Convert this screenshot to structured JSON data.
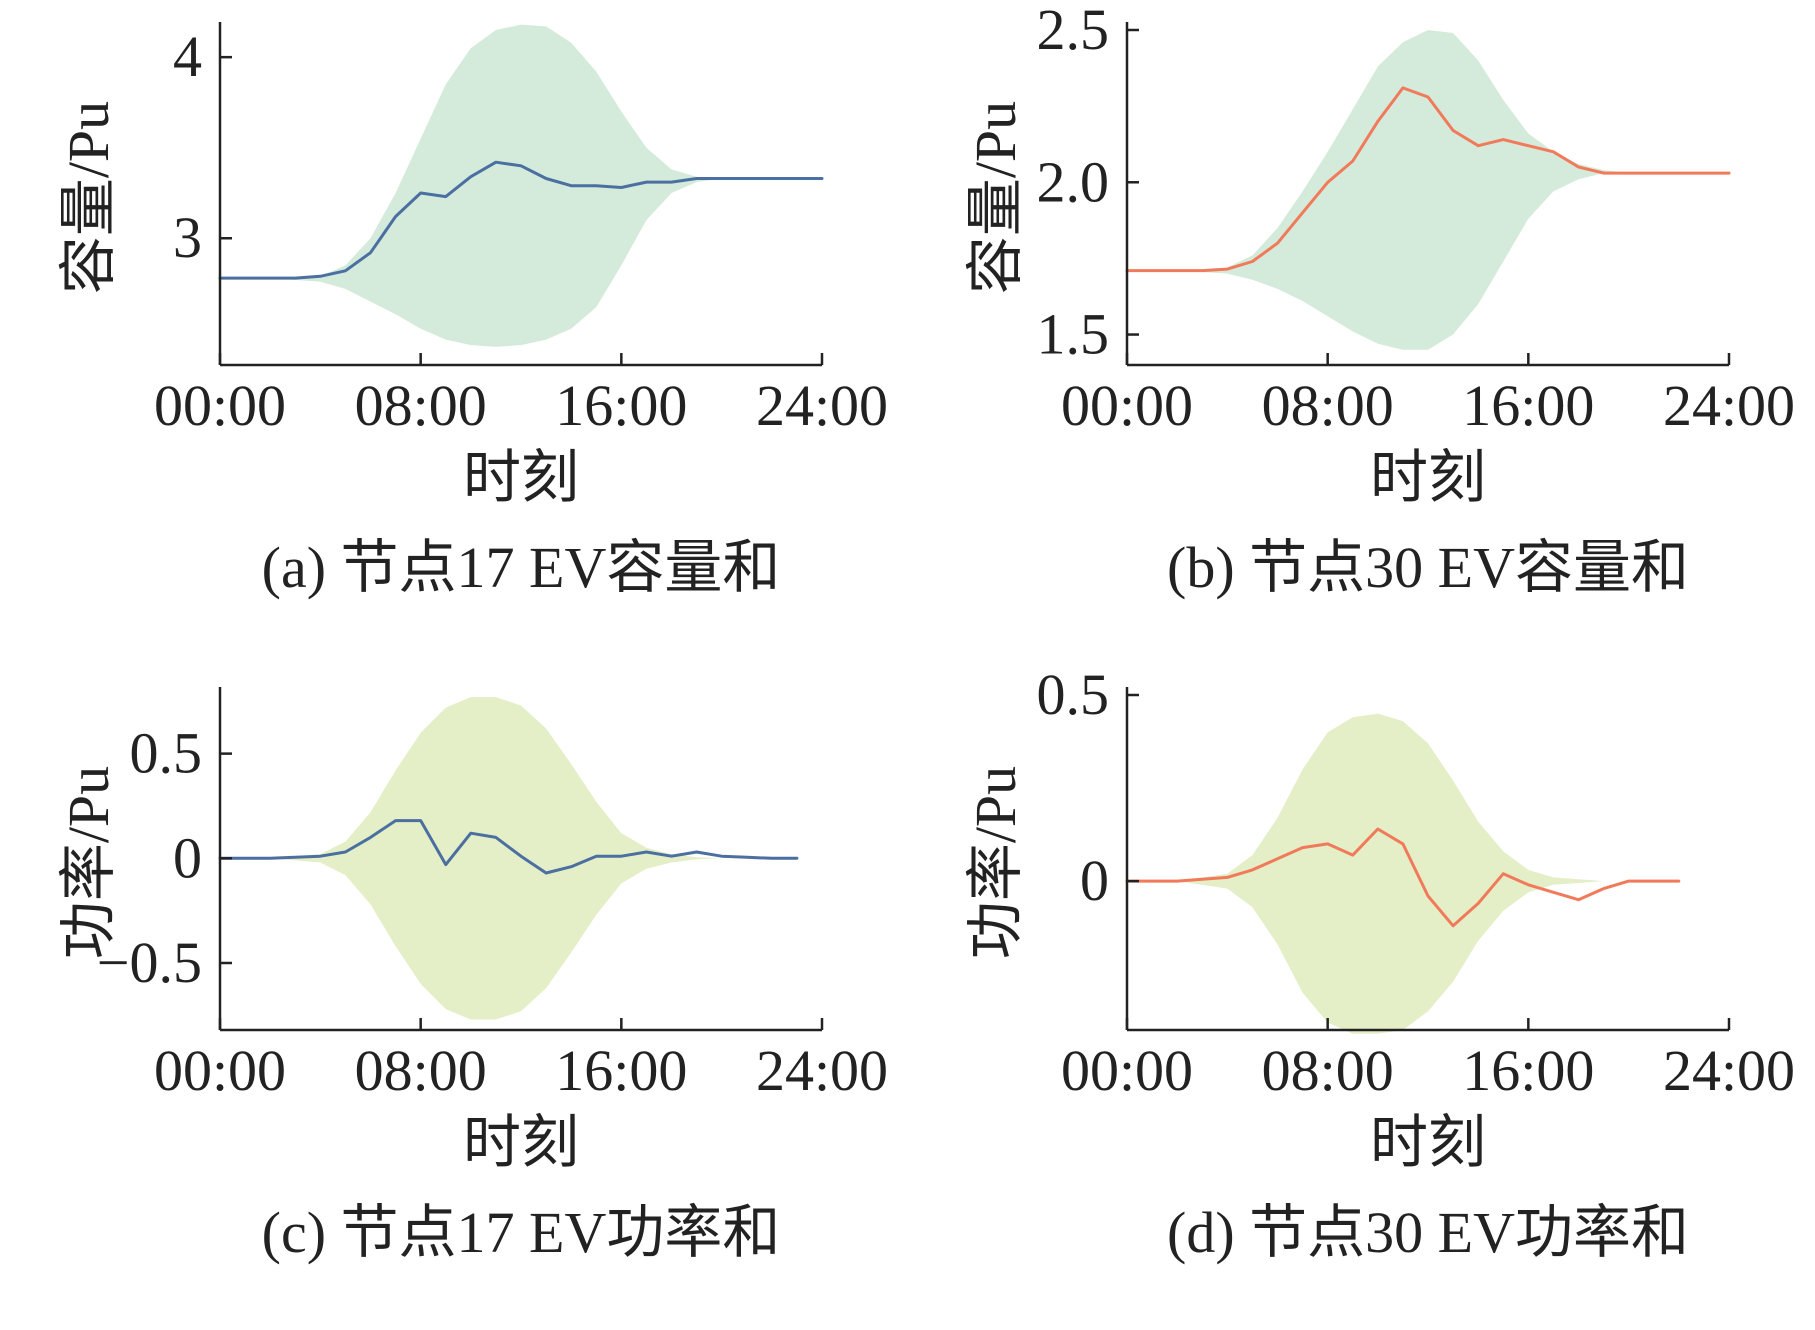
{
  "colors": {
    "blue_line": "#4a6fa0",
    "red_line": "#f07a5a",
    "band_green": "#d4ebdb",
    "band_yellow": "#e4efc7",
    "axis": "#222222"
  },
  "chart_data": [
    {
      "id": "a",
      "type": "line",
      "caption": "(a) 节点17 EV容量和",
      "xlabel": "时刻",
      "ylabel": "容量/Pu",
      "x_ticks": [
        "00:00",
        "08:00",
        "16:00",
        "24:00"
      ],
      "x_tick_values": [
        0,
        8,
        16,
        24
      ],
      "xlim": [
        0,
        24
      ],
      "y_ticks": [
        "3",
        "4"
      ],
      "y_tick_values": [
        3,
        4
      ],
      "ylim": [
        2.3,
        4.15
      ],
      "series": [
        {
          "color": "#4a6fa0",
          "x": [
            0,
            1,
            2,
            3,
            4,
            5,
            6,
            7,
            8,
            9,
            10,
            11,
            12,
            13,
            14,
            15,
            16,
            17,
            18,
            19,
            20,
            21,
            22,
            23,
            24
          ],
          "y": [
            2.78,
            2.78,
            2.78,
            2.78,
            2.79,
            2.82,
            2.92,
            3.12,
            3.25,
            3.23,
            3.34,
            3.42,
            3.4,
            3.33,
            3.29,
            3.29,
            3.28,
            3.31,
            3.31,
            3.33,
            3.33,
            3.33,
            3.33,
            3.33,
            3.33
          ]
        }
      ],
      "band": {
        "color": "#d4ebdb",
        "x": [
          0,
          2,
          4,
          5,
          6,
          7,
          8,
          9,
          10,
          11,
          12,
          13,
          14,
          15,
          16,
          17,
          18,
          19,
          20,
          21,
          22,
          23,
          24
        ],
        "upper": [
          2.78,
          2.78,
          2.79,
          2.85,
          3.0,
          3.25,
          3.55,
          3.85,
          4.05,
          4.15,
          4.18,
          4.17,
          4.08,
          3.92,
          3.7,
          3.5,
          3.38,
          3.34,
          3.33,
          3.33,
          3.33,
          3.33,
          3.33
        ],
        "lower": [
          2.78,
          2.78,
          2.76,
          2.72,
          2.65,
          2.58,
          2.5,
          2.44,
          2.41,
          2.4,
          2.41,
          2.44,
          2.5,
          2.62,
          2.85,
          3.1,
          3.25,
          3.31,
          3.33,
          3.33,
          3.33,
          3.33,
          3.33
        ]
      }
    },
    {
      "id": "b",
      "type": "line",
      "caption": "(b) 节点30 EV容量和",
      "xlabel": "时刻",
      "ylabel": "容量/Pu",
      "x_ticks": [
        "00:00",
        "08:00",
        "16:00",
        "24:00"
      ],
      "x_tick_values": [
        0,
        8,
        16,
        24
      ],
      "xlim": [
        0,
        24
      ],
      "y_ticks": [
        "1.5",
        "2.0",
        "2.5"
      ],
      "y_tick_values": [
        1.5,
        2.0,
        2.5
      ],
      "ylim": [
        1.4,
        2.5
      ],
      "series": [
        {
          "color": "#f07a5a",
          "x": [
            0,
            1,
            2,
            3,
            4,
            5,
            6,
            7,
            8,
            9,
            10,
            11,
            12,
            13,
            14,
            15,
            16,
            17,
            18,
            19,
            20,
            21,
            22,
            23,
            24
          ],
          "y": [
            1.71,
            1.71,
            1.71,
            1.71,
            1.715,
            1.74,
            1.8,
            1.9,
            2.0,
            2.07,
            2.2,
            2.31,
            2.28,
            2.17,
            2.12,
            2.14,
            2.12,
            2.1,
            2.05,
            2.03,
            2.03,
            2.03,
            2.03,
            2.03,
            2.03
          ]
        }
      ],
      "band": {
        "color": "#d4ebdb",
        "x": [
          0,
          2,
          4,
          5,
          6,
          7,
          8,
          9,
          10,
          11,
          12,
          13,
          14,
          15,
          16,
          17,
          18,
          19,
          20,
          21,
          22,
          23,
          24
        ],
        "upper": [
          1.71,
          1.71,
          1.72,
          1.76,
          1.85,
          1.97,
          2.1,
          2.24,
          2.38,
          2.46,
          2.5,
          2.49,
          2.4,
          2.27,
          2.16,
          2.1,
          2.06,
          2.04,
          2.03,
          2.03,
          2.03,
          2.03,
          2.03
        ],
        "lower": [
          1.71,
          1.71,
          1.7,
          1.68,
          1.65,
          1.61,
          1.56,
          1.51,
          1.47,
          1.45,
          1.45,
          1.5,
          1.6,
          1.74,
          1.88,
          1.97,
          2.01,
          2.03,
          2.03,
          2.03,
          2.03,
          2.03,
          2.03
        ]
      }
    },
    {
      "id": "c",
      "type": "line",
      "caption": "(c) 节点17 EV功率和",
      "xlabel": "时刻",
      "ylabel": "功率/Pu",
      "x_ticks": [
        "00:00",
        "08:00",
        "16:00",
        "24:00"
      ],
      "x_tick_values": [
        0,
        8,
        16,
        24
      ],
      "xlim": [
        0,
        24
      ],
      "y_ticks": [
        "−0.5",
        "0",
        "0.5"
      ],
      "y_tick_values": [
        -0.5,
        0,
        0.5
      ],
      "ylim": [
        -0.82,
        0.78
      ],
      "series": [
        {
          "color": "#4a6fa0",
          "x": [
            0,
            1,
            2,
            3,
            4,
            5,
            6,
            7,
            8,
            9,
            10,
            11,
            12,
            13,
            14,
            15,
            16,
            17,
            18,
            19,
            20,
            21,
            22,
            23
          ],
          "y": [
            0,
            0,
            0,
            0.005,
            0.01,
            0.03,
            0.1,
            0.18,
            0.18,
            -0.03,
            0.12,
            0.1,
            0.01,
            -0.07,
            -0.04,
            0.01,
            0.01,
            0.03,
            0.01,
            0.03,
            0.01,
            0.005,
            0,
            0
          ]
        }
      ],
      "band": {
        "color": "#e4efc7",
        "x": [
          0,
          2,
          4,
          5,
          6,
          7,
          8,
          9,
          10,
          11,
          12,
          13,
          14,
          15,
          16,
          17,
          18,
          19,
          20,
          21,
          22,
          23
        ],
        "upper": [
          0,
          0,
          0.02,
          0.08,
          0.22,
          0.42,
          0.6,
          0.72,
          0.77,
          0.77,
          0.73,
          0.62,
          0.45,
          0.27,
          0.12,
          0.05,
          0.02,
          0.005,
          0,
          0,
          0,
          0
        ],
        "lower": [
          0,
          0,
          -0.02,
          -0.08,
          -0.22,
          -0.42,
          -0.6,
          -0.72,
          -0.77,
          -0.77,
          -0.73,
          -0.62,
          -0.45,
          -0.27,
          -0.12,
          -0.05,
          -0.02,
          -0.005,
          0,
          0,
          0,
          0
        ]
      }
    },
    {
      "id": "d",
      "type": "line",
      "caption": "(d) 节点30 EV功率和",
      "xlabel": "时刻",
      "ylabel": "功率/Pu",
      "x_ticks": [
        "00:00",
        "08:00",
        "16:00",
        "24:00"
      ],
      "x_tick_values": [
        0,
        8,
        16,
        24
      ],
      "xlim": [
        0,
        24
      ],
      "y_ticks": [
        "0",
        "0.5"
      ],
      "y_tick_values": [
        0,
        0.5
      ],
      "ylim": [
        -0.4,
        0.5
      ],
      "series": [
        {
          "color": "#f07a5a",
          "x": [
            0,
            1,
            2,
            3,
            4,
            5,
            6,
            7,
            8,
            9,
            10,
            11,
            12,
            13,
            14,
            15,
            16,
            17,
            18,
            19,
            20,
            21,
            22
          ],
          "y": [
            0,
            0,
            0,
            0.005,
            0.01,
            0.03,
            0.06,
            0.09,
            0.1,
            0.07,
            0.14,
            0.1,
            -0.04,
            -0.12,
            -0.06,
            0.02,
            -0.01,
            -0.03,
            -0.05,
            -0.02,
            0,
            0,
            0
          ]
        }
      ],
      "band": {
        "color": "#e4efc7",
        "x": [
          0,
          2,
          4,
          5,
          6,
          7,
          8,
          9,
          10,
          11,
          12,
          13,
          14,
          15,
          16,
          17,
          18,
          19,
          20,
          21,
          22
        ],
        "upper": [
          0,
          0,
          0.02,
          0.07,
          0.17,
          0.3,
          0.4,
          0.44,
          0.45,
          0.43,
          0.37,
          0.27,
          0.16,
          0.08,
          0.03,
          0.01,
          0.005,
          0,
          0,
          0,
          0
        ],
        "lower": [
          0,
          0,
          -0.02,
          -0.07,
          -0.17,
          -0.3,
          -0.38,
          -0.41,
          -0.41,
          -0.4,
          -0.35,
          -0.27,
          -0.16,
          -0.08,
          -0.03,
          -0.01,
          -0.005,
          0,
          0,
          0,
          0
        ]
      }
    }
  ]
}
